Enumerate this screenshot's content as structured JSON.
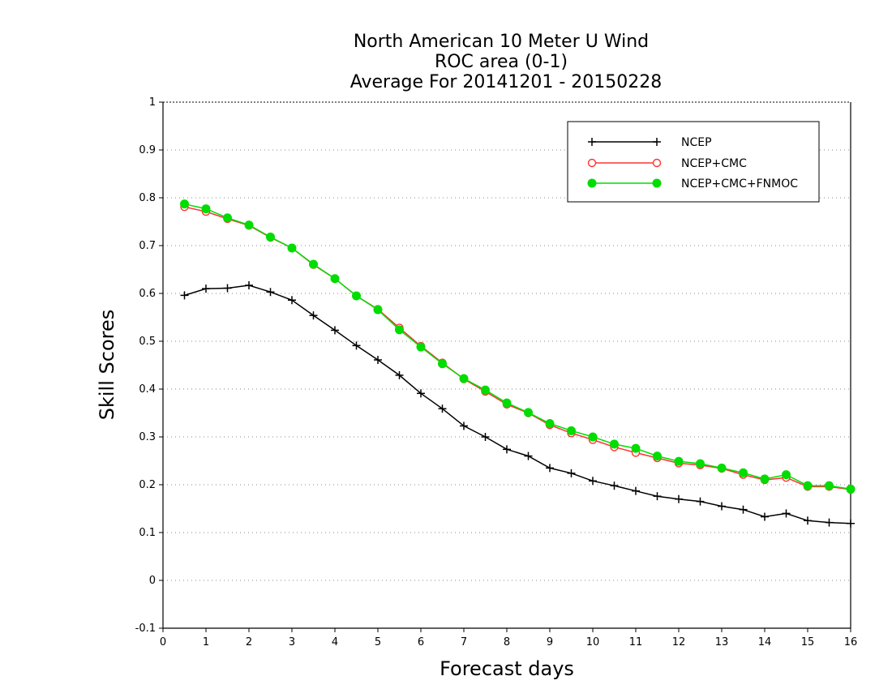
{
  "chart_data": {
    "type": "line",
    "title_lines": [
      "North American 10 Meter U Wind",
      "ROC area (0-1)",
      "Average For 20141201 - 20150228"
    ],
    "xlabel": "Forecast days",
    "ylabel": "Skill Scores",
    "xlim": [
      0,
      16
    ],
    "ylim": [
      -0.1,
      1
    ],
    "x_ticks": [
      0,
      1,
      2,
      3,
      4,
      5,
      6,
      7,
      8,
      9,
      10,
      11,
      12,
      13,
      14,
      15,
      16
    ],
    "y_ticks": [
      -0.1,
      0,
      0.1,
      0.2,
      0.3,
      0.4,
      0.5,
      0.6,
      0.7,
      0.8,
      0.9,
      1
    ],
    "y_tick_labels": [
      "-0.1",
      "0",
      "0.1",
      "0.2",
      "0.3",
      "0.4",
      "0.5",
      "0.6",
      "0.7",
      "0.8",
      "0.9",
      "1"
    ],
    "grid": "horizontal dotted",
    "legend_position": "top-right",
    "x": [
      0.5,
      1,
      1.5,
      2,
      2.5,
      3,
      3.5,
      4,
      4.5,
      5,
      5.5,
      6,
      6.5,
      7,
      7.5,
      8,
      8.5,
      9,
      9.5,
      10,
      10.5,
      11,
      11.5,
      12,
      12.5,
      13,
      13.5,
      14,
      14.5,
      15,
      15.5,
      16
    ],
    "series": [
      {
        "name": "NCEP",
        "color": "#000000",
        "marker": "plus",
        "values": [
          0.596,
          0.61,
          0.611,
          0.617,
          0.603,
          0.586,
          0.554,
          0.523,
          0.491,
          0.461,
          0.429,
          0.391,
          0.359,
          0.323,
          0.3,
          0.274,
          0.26,
          0.235,
          0.224,
          0.208,
          0.198,
          0.187,
          0.176,
          0.17,
          0.165,
          0.155,
          0.148,
          0.133,
          0.14,
          0.125,
          0.121,
          0.119
        ]
      },
      {
        "name": "NCEP+CMC",
        "color": "#ff3333",
        "marker": "open-circle",
        "values": [
          0.781,
          0.771,
          0.756,
          0.742,
          0.717,
          0.695,
          0.66,
          0.631,
          0.595,
          0.567,
          0.528,
          0.49,
          0.455,
          0.421,
          0.395,
          0.368,
          0.35,
          0.325,
          0.308,
          0.294,
          0.279,
          0.267,
          0.256,
          0.245,
          0.241,
          0.234,
          0.221,
          0.21,
          0.215,
          0.196,
          0.196,
          0.19
        ]
      },
      {
        "name": "NCEP+CMC+FNMOC",
        "color": "#00dd00",
        "marker": "filled-circle",
        "values": [
          0.787,
          0.777,
          0.758,
          0.743,
          0.718,
          0.695,
          0.661,
          0.631,
          0.595,
          0.566,
          0.524,
          0.488,
          0.453,
          0.422,
          0.398,
          0.371,
          0.351,
          0.328,
          0.313,
          0.3,
          0.285,
          0.276,
          0.26,
          0.249,
          0.244,
          0.235,
          0.225,
          0.212,
          0.221,
          0.198,
          0.198,
          0.191
        ]
      }
    ]
  }
}
